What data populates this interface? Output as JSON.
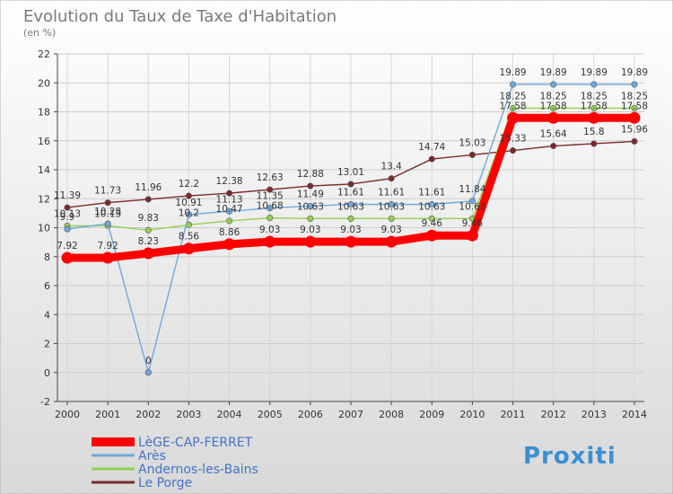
{
  "title": "Evolution du Taux de Taxe d'Habitation",
  "subtitle": "(en %)",
  "logo_text": "Proxiti",
  "colors": {
    "background_top": "#ffffff",
    "background_bottom": "#d8d8d8",
    "grid": "#c8c8c8",
    "title": "#7a7a7a"
  },
  "chart_data": {
    "type": "line",
    "title": "Evolution du Taux de Taxe d'Habitation",
    "ylabel": "(en %)",
    "xlabel": "",
    "ylim": [
      -2,
      22
    ],
    "yticks": [
      "-2",
      "0",
      "2",
      "4",
      "6",
      "8",
      "10",
      "12",
      "14",
      "16",
      "18",
      "20",
      "22"
    ],
    "x": [
      "2000",
      "2001",
      "2002",
      "2003",
      "2004",
      "2005",
      "2006",
      "2007",
      "2008",
      "2009",
      "2010",
      "2011",
      "2012",
      "2013",
      "2014"
    ],
    "grid": true,
    "legend_position": "bottom-left",
    "series": [
      {
        "name": "LèGE-CAP-FERRET",
        "color": "#ff0000",
        "values": [
          7.92,
          7.92,
          8.23,
          8.56,
          8.86,
          9.03,
          9.03,
          9.03,
          9.03,
          9.46,
          9.46,
          17.58,
          17.58,
          17.58,
          17.58
        ],
        "labels": [
          "7.92",
          "7.92",
          "8.23",
          "8.56",
          "8.86",
          "9.03",
          "9.03",
          "9.03",
          "9.03",
          "9.46",
          "9.46",
          "17.58",
          "17.58",
          "17.58",
          "17.58"
        ]
      },
      {
        "name": "Arès",
        "color": "#6fa8dc",
        "values": [
          9.9,
          10.28,
          0,
          10.91,
          11.13,
          11.35,
          11.49,
          11.61,
          11.61,
          11.61,
          11.84,
          19.89,
          19.89,
          19.89,
          19.89
        ],
        "labels": [
          "9.9",
          "10.28",
          "0",
          "10.91",
          "11.13",
          "11.35",
          "11.49",
          "11.61",
          "11.61",
          "11.61",
          "11.84",
          "19.89",
          "19.89",
          "19.89",
          "19.89"
        ]
      },
      {
        "name": "Andernos-les-Bains",
        "color": "#93d250",
        "values": [
          10.13,
          10.13,
          9.83,
          10.2,
          10.47,
          10.68,
          10.63,
          10.63,
          10.63,
          10.63,
          10.63,
          18.25,
          18.25,
          18.25,
          18.25
        ],
        "labels": [
          "10.13",
          "10.13",
          "9.83",
          "10.2",
          "10.47",
          "10.68",
          "10.63",
          "10.63",
          "10.63",
          "10.63",
          "10.63",
          "18.25",
          "18.25",
          "18.25",
          "18.25"
        ]
      },
      {
        "name": "Le Porge",
        "color": "#7a2a2a",
        "values": [
          11.39,
          11.73,
          11.96,
          12.2,
          12.38,
          12.63,
          12.88,
          13.01,
          13.4,
          14.74,
          15.03,
          15.33,
          15.64,
          15.8,
          15.96
        ],
        "labels": [
          "11.39",
          "11.73",
          "11.96",
          "12.2",
          "12.38",
          "12.63",
          "12.88",
          "13.01",
          "13.4",
          "14.74",
          "15.03",
          "15.33",
          "15.64",
          "15.8",
          "15.96"
        ]
      }
    ]
  }
}
